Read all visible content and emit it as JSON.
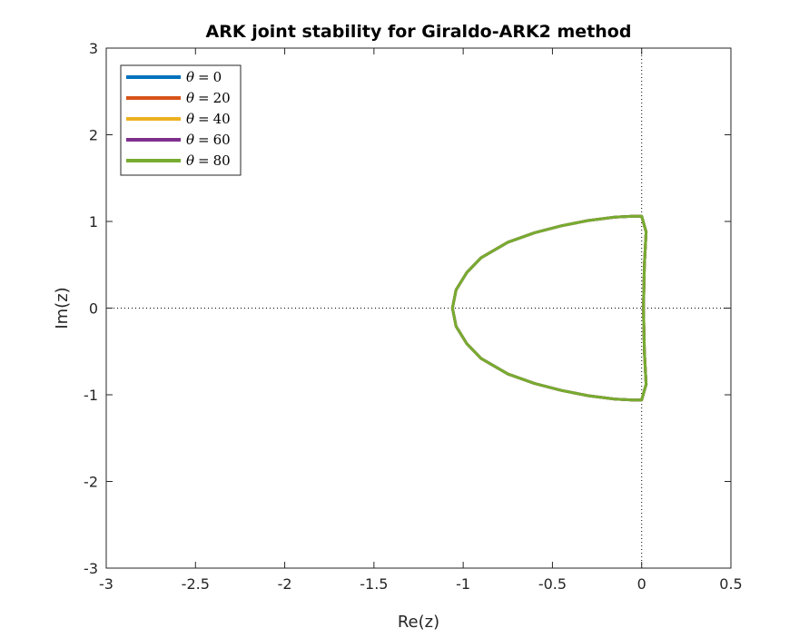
{
  "chart_data": {
    "type": "line",
    "title": "ARK joint stability for Giraldo-ARK2 method",
    "xlabel": "Re(z)",
    "ylabel": "Im(z)",
    "xlim": [
      -3,
      0.5
    ],
    "ylim": [
      -3,
      3
    ],
    "xticks": [
      -3,
      -2.5,
      -2,
      -1.5,
      -1,
      -0.5,
      0,
      0.5
    ],
    "xtick_labels": [
      "-3",
      "-2.5",
      "-2",
      "-1.5",
      "-1",
      "-0.5",
      "0",
      "0.5"
    ],
    "yticks": [
      -3,
      -2,
      -1,
      0,
      1,
      2,
      3
    ],
    "ytick_labels": [
      "-3",
      "-2",
      "-1",
      "0",
      "1",
      "2",
      "3"
    ],
    "grid": false,
    "box": true,
    "reference_lines": {
      "x0": true,
      "y0": true,
      "style": "dotted"
    },
    "legend_position": "top-left",
    "series": [
      {
        "name": "θ = 0",
        "legend_var": "θ",
        "legend_op": "=",
        "legend_val": "0",
        "color": "#0072BD"
      },
      {
        "name": "θ = 20",
        "legend_var": "θ",
        "legend_op": "=",
        "legend_val": "20",
        "color": "#D95319"
      },
      {
        "name": "θ = 40",
        "legend_var": "θ",
        "legend_op": "=",
        "legend_val": "40",
        "color": "#EDB120"
      },
      {
        "name": "θ = 60",
        "legend_var": "θ",
        "legend_op": "=",
        "legend_val": "60",
        "color": "#7E2F8E"
      },
      {
        "name": "θ = 80",
        "legend_var": "θ",
        "legend_op": "=",
        "legend_val": "80",
        "color": "#77AC30"
      }
    ],
    "curve": {
      "x": [
        -0.05,
        -0.15,
        -0.3,
        -0.45,
        -0.6,
        -0.75,
        -0.9,
        -0.98,
        -1.04,
        -1.06,
        -1.04,
        -0.98,
        -0.9,
        -0.75,
        -0.6,
        -0.45,
        -0.3,
        -0.15,
        -0.05,
        0.0,
        0.025,
        0.015,
        0.01,
        0.015,
        0.025,
        0.0,
        -0.05
      ],
      "y": [
        1.06,
        1.05,
        1.01,
        0.95,
        0.87,
        0.76,
        0.58,
        0.41,
        0.21,
        0.0,
        -0.21,
        -0.41,
        -0.58,
        -0.76,
        -0.87,
        -0.95,
        -1.01,
        -1.05,
        -1.06,
        -1.06,
        -0.88,
        -0.5,
        0.0,
        0.5,
        0.88,
        1.06,
        1.06
      ]
    }
  }
}
